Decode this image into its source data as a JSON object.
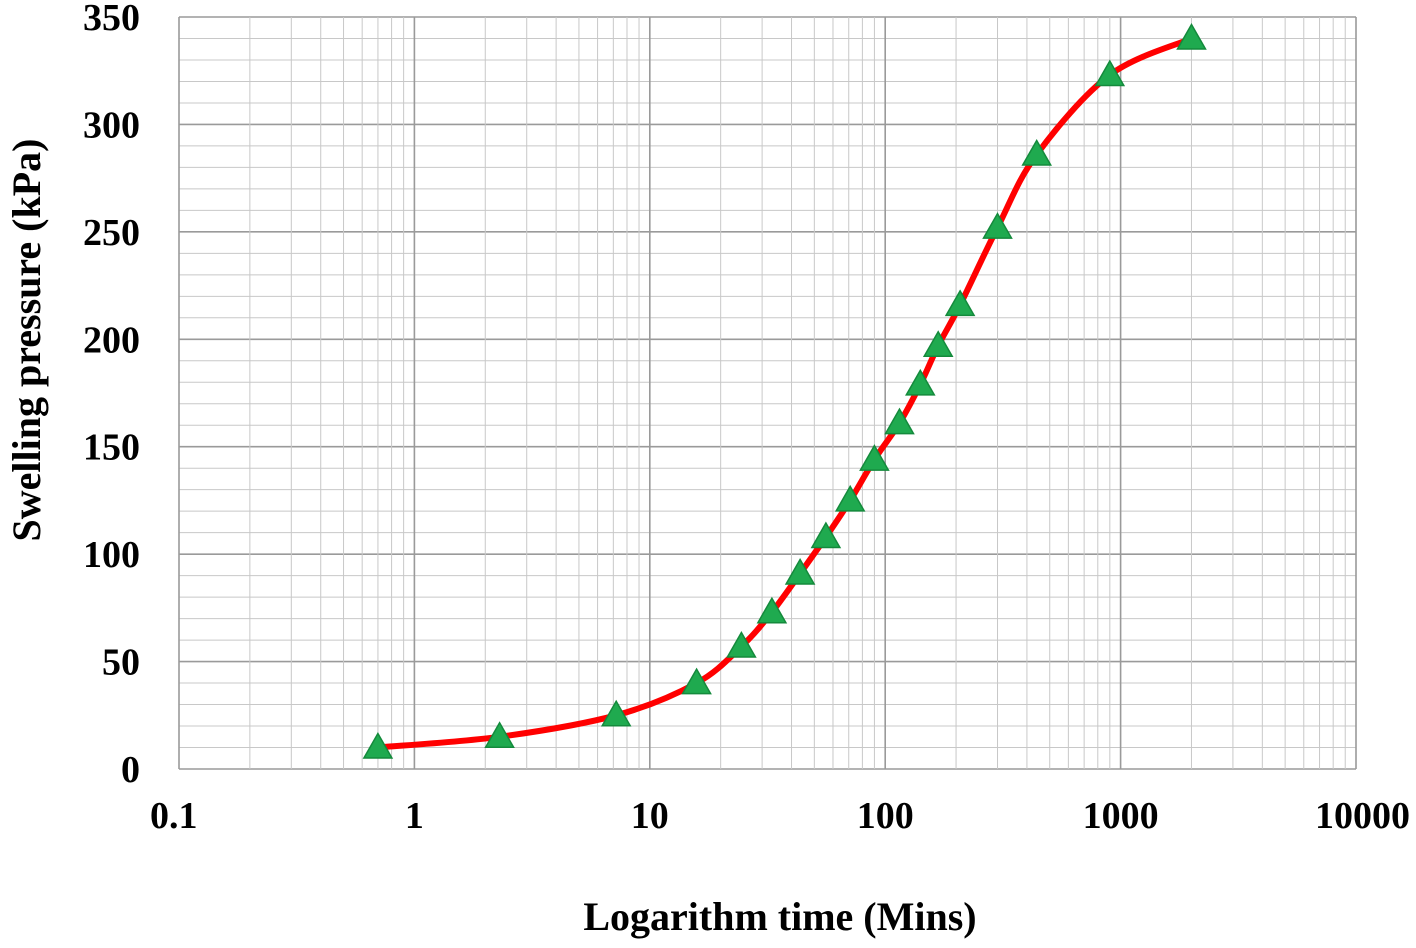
{
  "chart_data": {
    "type": "line",
    "title": "",
    "xlabel": "Logarithm time (Mins)",
    "ylabel": "Swelling pressure (kPa)",
    "x_scale": "log",
    "xlim": [
      0.1,
      10000
    ],
    "ylim": [
      0,
      350
    ],
    "x_ticks": [
      "0.1",
      "1",
      "10",
      "100",
      "1000",
      "10000"
    ],
    "y_ticks": [
      "0",
      "50",
      "100",
      "150",
      "200",
      "250",
      "300",
      "350"
    ],
    "grid": true,
    "legend": "none",
    "series": [
      {
        "name": "",
        "line_color": "#ff0000",
        "marker": "triangle",
        "marker_color": "#1faa4f",
        "x": [
          0.7,
          2.3,
          7.2,
          15.8,
          24.5,
          33,
          43.5,
          56,
          71,
          90,
          115,
          141,
          168,
          208,
          300,
          440,
          900,
          2000
        ],
        "y": [
          10,
          15,
          25,
          40,
          57,
          73,
          91,
          108,
          125,
          144,
          161,
          179,
          197,
          216,
          252,
          286,
          323,
          340
        ]
      }
    ]
  }
}
